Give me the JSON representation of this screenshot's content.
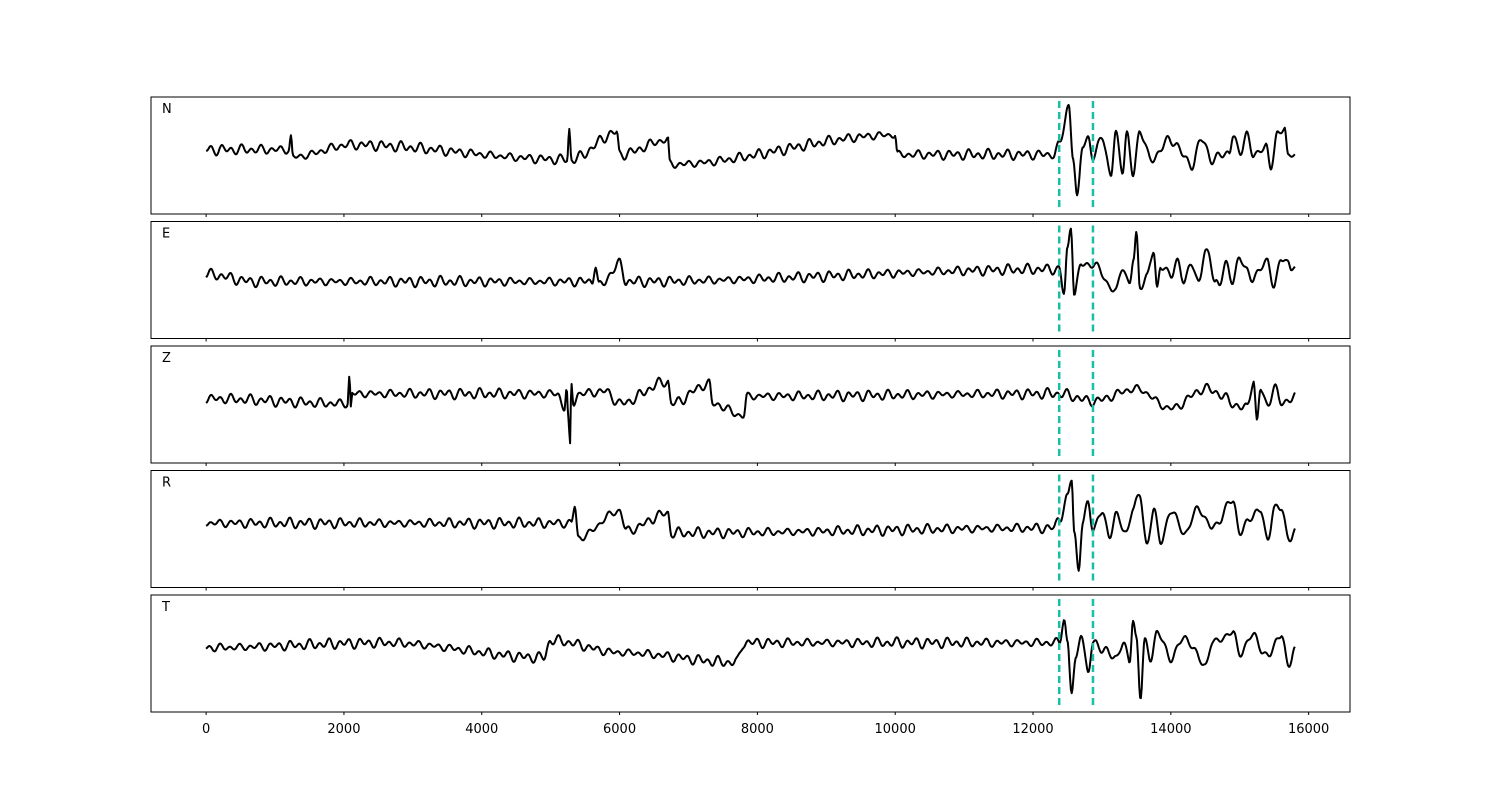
{
  "chart_data": {
    "type": "line",
    "title": "",
    "xlabel": "",
    "ylabel": "",
    "xlim": [
      -800,
      16600
    ],
    "grid": false,
    "x_ticks": [
      0,
      2000,
      4000,
      6000,
      8000,
      10000,
      12000,
      14000,
      16000
    ],
    "x_tick_labels": [
      "0",
      "2000",
      "4000",
      "6000",
      "8000",
      "10000",
      "12000",
      "14000",
      "16000"
    ],
    "markers": {
      "style": "dashed",
      "color": "#17bfa8",
      "x": [
        12380,
        12870
      ]
    },
    "x_range": [
      0,
      15800
    ],
    "panels": [
      {
        "label": "N",
        "keypoints": [
          [
            0,
            0
          ],
          [
            1200,
            0
          ],
          [
            1230,
            0.25
          ],
          [
            1260,
            -0.15
          ],
          [
            2100,
            0.1
          ],
          [
            5240,
            -0.2
          ],
          [
            5270,
            0.4
          ],
          [
            5300,
            -0.2
          ],
          [
            5960,
            0.35
          ],
          [
            6000,
            -0.1
          ],
          [
            6700,
            0.2
          ],
          [
            6730,
            -0.3
          ],
          [
            10000,
            0.3
          ],
          [
            10030,
            -0.1
          ],
          [
            12300,
            -0.1
          ],
          [
            12380,
            0.1
          ],
          [
            12520,
            0.9
          ],
          [
            12580,
            -0.15
          ],
          [
            12640,
            -1.0
          ],
          [
            12720,
            0.1
          ],
          [
            12800,
            0.25
          ],
          [
            12870,
            -0.2
          ],
          [
            13000,
            0.3
          ],
          [
            13130,
            -0.55
          ],
          [
            13200,
            0.35
          ],
          [
            13300,
            -0.4
          ],
          [
            13360,
            0.3
          ],
          [
            13450,
            -0.5
          ],
          [
            13550,
            0.4
          ],
          [
            13700,
            -0.2
          ],
          [
            14000,
            0.2
          ],
          [
            14300,
            -0.3
          ],
          [
            14450,
            0.2
          ],
          [
            14600,
            -0.2
          ],
          [
            14850,
            -0.05
          ],
          [
            14900,
            0.3
          ],
          [
            15000,
            -0.1
          ],
          [
            15100,
            0.35
          ],
          [
            15200,
            -0.15
          ],
          [
            15380,
            0.1
          ],
          [
            15450,
            -0.4
          ],
          [
            15550,
            0.35
          ],
          [
            15650,
            0.45
          ],
          [
            15700,
            -0.15
          ],
          [
            15800,
            -0.1
          ]
        ]
      },
      {
        "label": "E",
        "keypoints": [
          [
            0,
            0
          ],
          [
            700,
            -0.15
          ],
          [
            5600,
            -0.15
          ],
          [
            5650,
            0.2
          ],
          [
            5700,
            -0.25
          ],
          [
            6000,
            0.2
          ],
          [
            6100,
            -0.15
          ],
          [
            12380,
            0.1
          ],
          [
            12450,
            -0.4
          ],
          [
            12500,
            0.5
          ],
          [
            12550,
            1.0
          ],
          [
            12600,
            -0.4
          ],
          [
            12700,
            0.2
          ],
          [
            12870,
            0.2
          ],
          [
            13200,
            -0.35
          ],
          [
            13300,
            0.15
          ],
          [
            13400,
            -0.2
          ],
          [
            13460,
            0.3
          ],
          [
            13500,
            0.8
          ],
          [
            13550,
            -0.25
          ],
          [
            13650,
            -0.05
          ],
          [
            13750,
            0.45
          ],
          [
            13800,
            -0.3
          ],
          [
            13850,
            0.2
          ],
          [
            14000,
            -0.05
          ],
          [
            14100,
            0.3
          ],
          [
            14200,
            -0.2
          ],
          [
            14300,
            0.25
          ],
          [
            14400,
            -0.15
          ],
          [
            14500,
            0.4
          ],
          [
            14550,
            0.4
          ],
          [
            14650,
            -0.15
          ],
          [
            14700,
            -0.25
          ],
          [
            14800,
            0.2
          ],
          [
            14900,
            -0.1
          ],
          [
            15000,
            0.3
          ],
          [
            15100,
            0.1
          ],
          [
            15200,
            -0.1
          ],
          [
            15400,
            0.3
          ],
          [
            15500,
            -0.3
          ],
          [
            15600,
            0.35
          ],
          [
            15700,
            0.25
          ],
          [
            15750,
            0.1
          ],
          [
            15800,
            0.1
          ]
        ]
      },
      {
        "label": "Z",
        "keypoints": [
          [
            0,
            0
          ],
          [
            2050,
            -0.1
          ],
          [
            2080,
            0.45
          ],
          [
            2100,
            -0.2
          ],
          [
            2120,
            0.1
          ],
          [
            5100,
            0.1
          ],
          [
            5200,
            -0.2
          ],
          [
            5230,
            0.2
          ],
          [
            5260,
            -0.5
          ],
          [
            5280,
            -1.0
          ],
          [
            5300,
            0.3
          ],
          [
            5330,
            -0.1
          ],
          [
            5400,
            0.1
          ],
          [
            5800,
            0.15
          ],
          [
            6000,
            -0.1
          ],
          [
            6700,
            0.35
          ],
          [
            6750,
            -0.1
          ],
          [
            7300,
            0.3
          ],
          [
            7350,
            -0.1
          ],
          [
            7800,
            -0.35
          ],
          [
            7850,
            0.05
          ],
          [
            12380,
            0.1
          ],
          [
            12870,
            -0.05
          ],
          [
            13500,
            0.2
          ],
          [
            14000,
            -0.2
          ],
          [
            14500,
            0.2
          ],
          [
            15100,
            -0.2
          ],
          [
            15200,
            0.4
          ],
          [
            15250,
            -0.5
          ],
          [
            15300,
            0.2
          ],
          [
            15400,
            -0.15
          ],
          [
            15500,
            0.25
          ],
          [
            15600,
            -0.1
          ],
          [
            15800,
            0.05
          ]
        ]
      },
      {
        "label": "R",
        "keypoints": [
          [
            0,
            0
          ],
          [
            5300,
            0
          ],
          [
            5350,
            0.35
          ],
          [
            5400,
            -0.3
          ],
          [
            6000,
            0.25
          ],
          [
            6100,
            -0.15
          ],
          [
            6700,
            0.2
          ],
          [
            6750,
            -0.2
          ],
          [
            12300,
            -0.1
          ],
          [
            12380,
            0.1
          ],
          [
            12500,
            0.5
          ],
          [
            12560,
            0.9
          ],
          [
            12600,
            -0.2
          ],
          [
            12660,
            -0.95
          ],
          [
            12720,
            0.05
          ],
          [
            12800,
            0.35
          ],
          [
            12870,
            -0.1
          ],
          [
            13000,
            0.25
          ],
          [
            13100,
            -0.3
          ],
          [
            13200,
            0.2
          ],
          [
            13350,
            -0.25
          ],
          [
            13450,
            0.35
          ],
          [
            13550,
            0.55
          ],
          [
            13650,
            -0.45
          ],
          [
            13750,
            0.3
          ],
          [
            13850,
            -0.4
          ],
          [
            14000,
            0.25
          ],
          [
            14200,
            -0.2
          ],
          [
            14400,
            0.3
          ],
          [
            14600,
            -0.1
          ],
          [
            14900,
            0.45
          ],
          [
            15000,
            -0.15
          ],
          [
            15300,
            0.3
          ],
          [
            15400,
            -0.4
          ],
          [
            15500,
            0.35
          ],
          [
            15600,
            0.3
          ],
          [
            15700,
            -0.3
          ],
          [
            15800,
            -0.15
          ]
        ]
      },
      {
        "label": "T",
        "keypoints": [
          [
            0,
            0
          ],
          [
            2600,
            0.1
          ],
          [
            4900,
            -0.2
          ],
          [
            5000,
            0.15
          ],
          [
            6000,
            -0.1
          ],
          [
            7700,
            -0.3
          ],
          [
            7800,
            0.1
          ],
          [
            12380,
            0.1
          ],
          [
            12450,
            0.6
          ],
          [
            12500,
            0.1
          ],
          [
            12560,
            -0.9
          ],
          [
            12620,
            -0.3
          ],
          [
            12700,
            0.35
          ],
          [
            12800,
            -0.55
          ],
          [
            12870,
            0.1
          ],
          [
            13200,
            -0.2
          ],
          [
            13300,
            0.1
          ],
          [
            13400,
            -0.3
          ],
          [
            13450,
            0.6
          ],
          [
            13500,
            0.2
          ],
          [
            13560,
            -1.0
          ],
          [
            13620,
            0.1
          ],
          [
            13700,
            -0.2
          ],
          [
            13800,
            0.3
          ],
          [
            14000,
            -0.2
          ],
          [
            14200,
            0.2
          ],
          [
            14500,
            -0.35
          ],
          [
            14600,
            0.1
          ],
          [
            14900,
            0.3
          ],
          [
            15000,
            -0.1
          ],
          [
            15200,
            0.25
          ],
          [
            15400,
            -0.2
          ],
          [
            15600,
            0.3
          ],
          [
            15700,
            -0.4
          ],
          [
            15800,
            0
          ]
        ]
      }
    ]
  }
}
